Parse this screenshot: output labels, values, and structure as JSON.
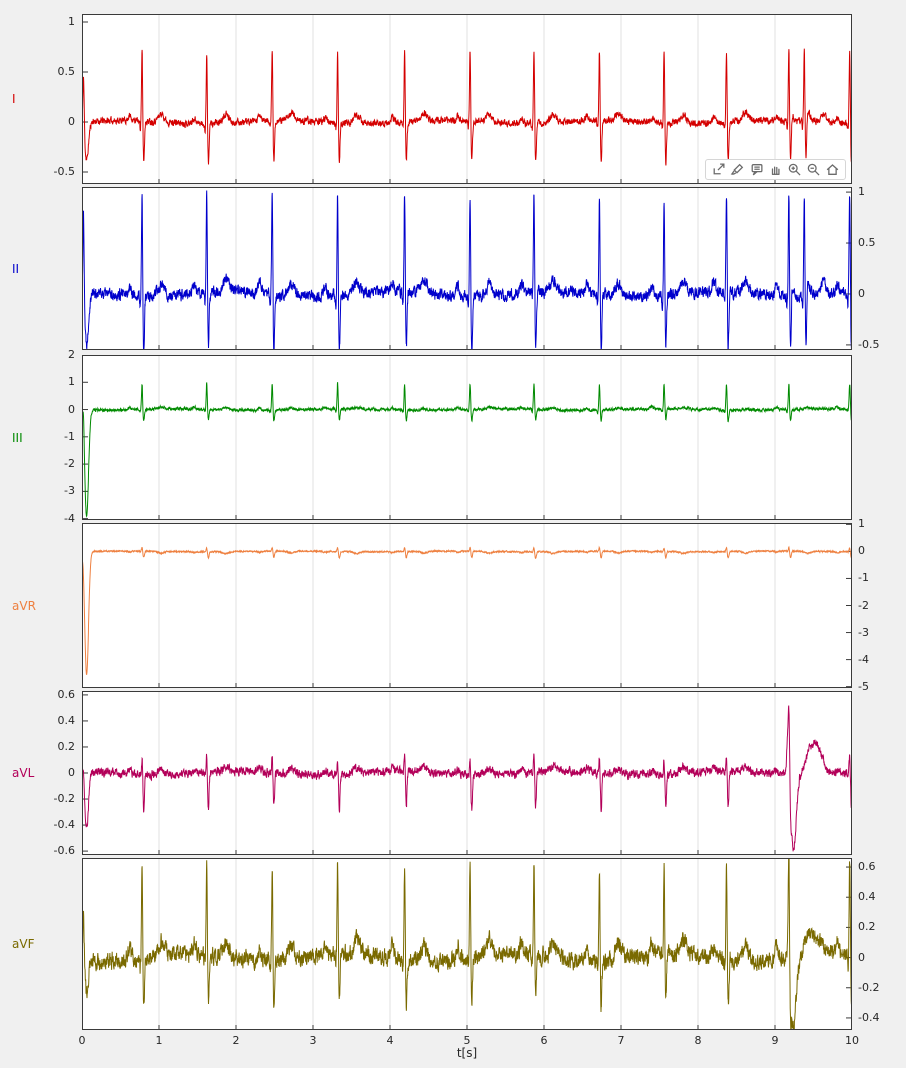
{
  "figure": {
    "background": "#f0f0f0",
    "plot_background": "#ffffff",
    "axis_color": "#3a3a3a",
    "grid_color": "#e0e0e0",
    "tick_label_color": "#262626"
  },
  "toolbar": {
    "icons": [
      "export-icon",
      "brush-icon",
      "datatips-icon",
      "pan-icon",
      "zoom-in-icon",
      "zoom-out-icon",
      "restore-view-icon"
    ]
  },
  "chart_data": {
    "type": "line",
    "title": "",
    "xlabel": "t[s]",
    "xlim": [
      0,
      10
    ],
    "xtick_vals": [
      0,
      1,
      2,
      3,
      4,
      5,
      6,
      7,
      8,
      9,
      10
    ],
    "xtick_labels": [
      "0",
      "1",
      "2",
      "3",
      "4",
      "5",
      "6",
      "7",
      "8",
      "9",
      "10"
    ],
    "grid": "vertical",
    "legend": "none",
    "beat_times": [
      0.78,
      1.62,
      2.47,
      3.32,
      4.19,
      5.04,
      5.87,
      6.72,
      7.56,
      8.37,
      9.18,
      9.97
    ],
    "panels": [
      {
        "name": "I",
        "color": "#d40000",
        "label_color": "#d40000",
        "axis_side": "left",
        "ylim": [
          -0.62,
          1.08
        ],
        "ytick_vals": [
          1,
          0.5,
          0,
          -0.5
        ],
        "ytick_labels": [
          "1",
          "0.5",
          "0",
          "-0.5"
        ],
        "qrs_up": 0.72,
        "qrs_down": -0.4,
        "p_amp": 0.05,
        "t_amp": 0.08,
        "noise": 0.03,
        "start": [
          0.55,
          -0.38
        ],
        "extra_beats": [
          9.38
        ],
        "seed": 11
      },
      {
        "name": "II",
        "color": "#0000cc",
        "label_color": "#0000cc",
        "axis_side": "right",
        "ylim": [
          -0.55,
          1.05
        ],
        "ytick_vals": [
          1,
          0.5,
          0,
          -0.5
        ],
        "ytick_labels": [
          "1",
          "0.5",
          "0",
          "-0.5"
        ],
        "qrs_up": 1.0,
        "qrs_down": -0.55,
        "p_amp": 0.09,
        "t_amp": 0.12,
        "noise": 0.05,
        "start": [
          0.9,
          -0.5
        ],
        "extra_beats": [
          9.38
        ],
        "seed": 22
      },
      {
        "name": "III",
        "color": "#008a00",
        "label_color": "#008a00",
        "axis_side": "left",
        "ylim": [
          -4.05,
          2.0
        ],
        "ytick_vals": [
          2,
          1,
          0,
          -1,
          -2,
          -3,
          -4
        ],
        "ytick_labels": [
          "2",
          "1",
          "0",
          "-1",
          "-2",
          "-3",
          "-4"
        ],
        "qrs_up": 0.95,
        "qrs_down": -0.4,
        "p_amp": 0.07,
        "t_amp": 0.06,
        "noise": 0.045,
        "start": [
          0.8,
          -3.9
        ],
        "seed": 33
      },
      {
        "name": "aVR",
        "color": "#ee8040",
        "label_color": "#ee8040",
        "axis_side": "right",
        "ylim": [
          -5.05,
          1.05
        ],
        "ytick_vals": [
          1,
          0,
          -1,
          -2,
          -3,
          -4,
          -5
        ],
        "ytick_labels": [
          "1",
          "0",
          "-1",
          "-2",
          "-3",
          "-4",
          "-5"
        ],
        "qrs_up": 0.14,
        "qrs_down": -0.24,
        "p_amp": -0.04,
        "t_amp": -0.07,
        "noise": 0.022,
        "start": [
          0.25,
          -4.55
        ],
        "seed": 44
      },
      {
        "name": "aVL",
        "color": "#b30059",
        "label_color": "#b30059",
        "axis_side": "left",
        "ylim": [
          -0.63,
          0.63
        ],
        "ytick_vals": [
          0.6,
          0.4,
          0.2,
          0,
          -0.2,
          -0.4,
          -0.6
        ],
        "ytick_labels": [
          "0.6",
          "0.4",
          "0.2",
          "0",
          "-0.2",
          "-0.4",
          "-0.6"
        ],
        "qrs_up": 0.13,
        "qrs_down": -0.27,
        "p_amp": 0.03,
        "t_amp": 0.04,
        "noise": 0.028,
        "start": [
          0.12,
          -0.42
        ],
        "anomaly": {
          "t": 9.22,
          "a1": 0.52,
          "a2": -0.58
        },
        "seed": 55
      },
      {
        "name": "aVF",
        "color": "#7a6a00",
        "label_color": "#7a6a00",
        "axis_side": "right",
        "ylim": [
          -0.48,
          0.66
        ],
        "ytick_vals": [
          0.6,
          0.4,
          0.2,
          0,
          -0.2,
          -0.4
        ],
        "ytick_labels": [
          "0.6",
          "0.4",
          "0.2",
          "0",
          "-0.2",
          "-0.4"
        ],
        "qrs_up": 0.62,
        "qrs_down": -0.3,
        "p_amp": 0.08,
        "t_amp": 0.1,
        "noise": 0.048,
        "start": [
          0.4,
          -0.2
        ],
        "anomaly": {
          "t": 9.22,
          "a1": 0.22,
          "a2": -0.46
        },
        "seed": 66
      }
    ]
  }
}
